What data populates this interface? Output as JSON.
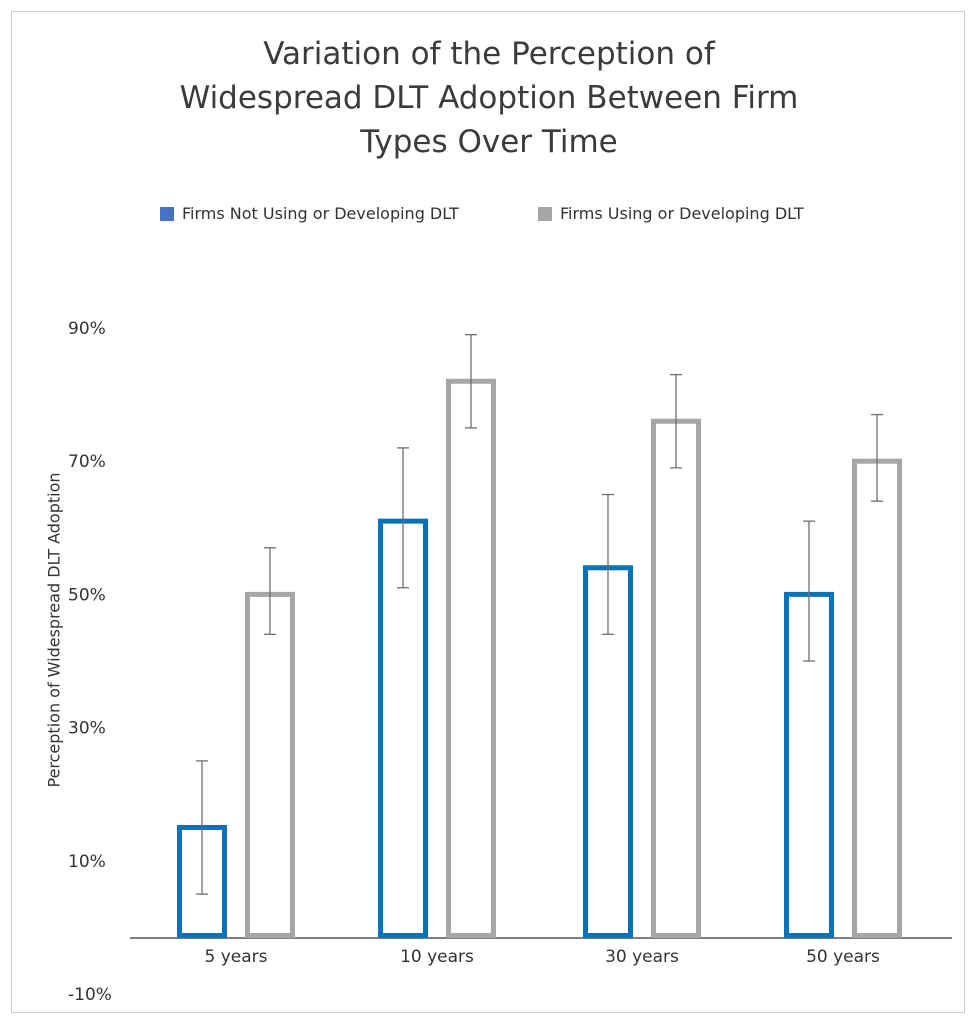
{
  "chart_data": {
    "type": "bar",
    "title_lines": [
      "Variation of the Perception of",
      "Widespread DLT Adoption Between Firm",
      "Types Over Time"
    ],
    "xlabel": "",
    "ylabel": "Perception of Widespread DLT Adoption",
    "categories": [
      "5 years",
      "10 years",
      "30 years",
      "50 years"
    ],
    "series": [
      {
        "name": "Firms Not Using or Developing DLT",
        "color": "#0a72b8",
        "legend_color": "#4472c4",
        "values": [
          15,
          61,
          54,
          50
        ],
        "error_low": [
          5,
          51,
          44,
          40
        ],
        "error_high": [
          25,
          72,
          65,
          61
        ]
      },
      {
        "name": "Firms Using or Developing DLT",
        "color": "#a6a6a6",
        "legend_color": "#a6a6a6",
        "values": [
          50,
          82,
          76,
          70
        ],
        "error_low": [
          44,
          75,
          69,
          64
        ],
        "error_high": [
          57,
          89,
          83,
          77
        ]
      }
    ],
    "ylim": [
      -10,
      90
    ],
    "yticks": [
      90,
      70,
      50,
      30,
      10,
      -10
    ],
    "ytick_labels": [
      "90%",
      "70%",
      "50%",
      "30%",
      "10%",
      "-10%"
    ],
    "grid": false,
    "legend_position": "top"
  }
}
